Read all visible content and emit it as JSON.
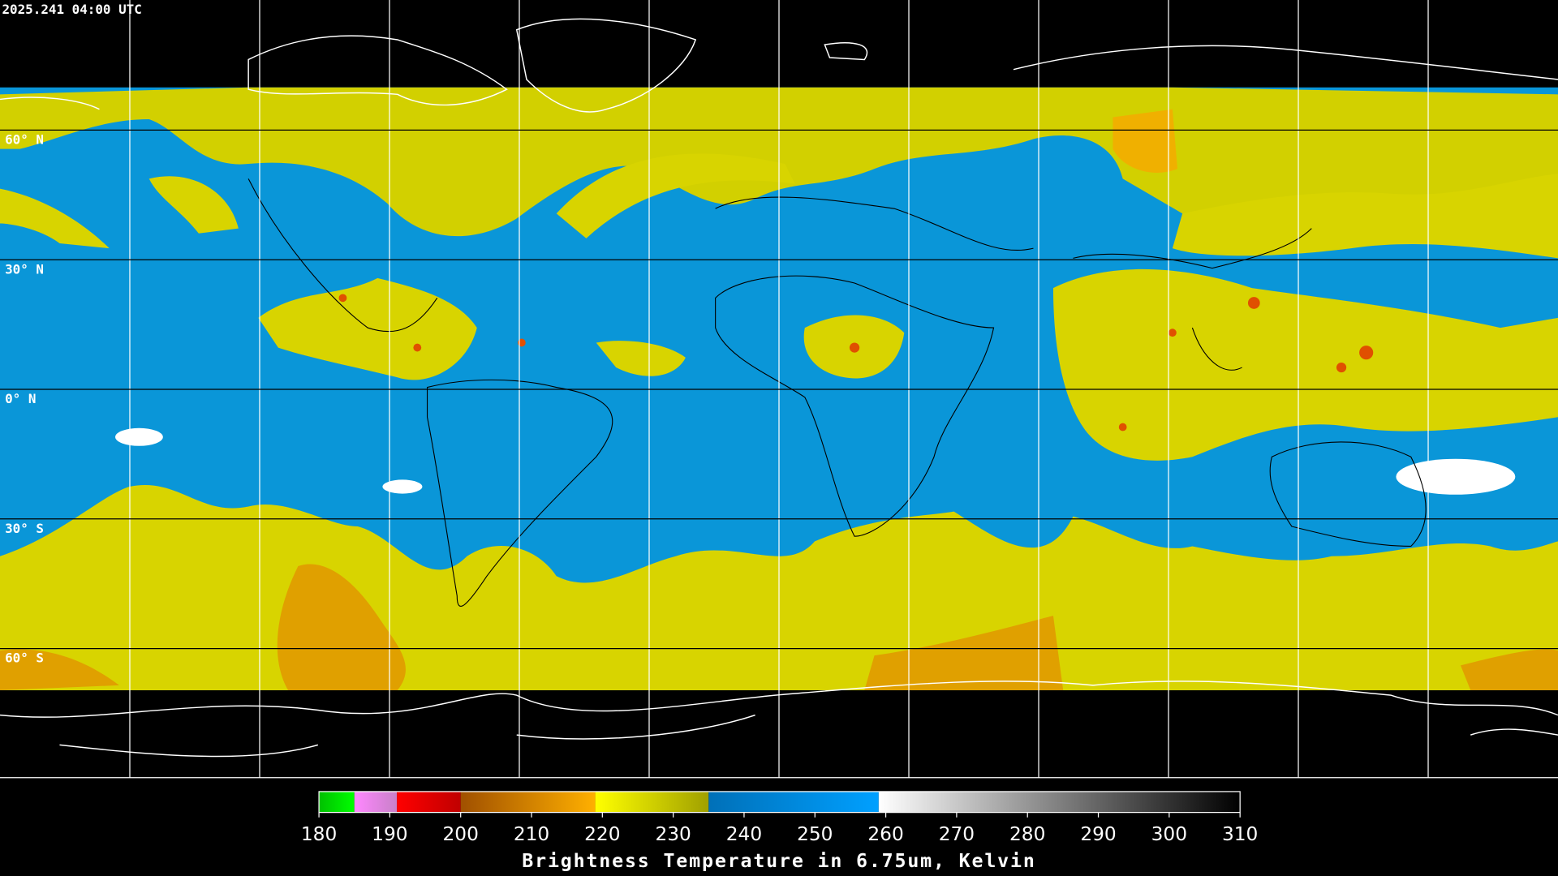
{
  "header": {
    "title": "2025.241 04:00 UTC"
  },
  "map": {
    "lon_lines": [
      -150,
      -120,
      -90,
      -60,
      -30,
      0,
      30,
      60,
      90,
      120,
      150
    ],
    "lat_lines": [
      {
        "value": 60,
        "label": "60° N"
      },
      {
        "value": 30,
        "label": "30° N"
      },
      {
        "value": 0,
        "label": "0° N"
      },
      {
        "value": -30,
        "label": "30° S"
      },
      {
        "value": -60,
        "label": "60° S"
      }
    ]
  },
  "colorbar": {
    "range": [
      180,
      310
    ],
    "ticks": [
      180,
      190,
      200,
      210,
      220,
      230,
      240,
      250,
      260,
      270,
      280,
      290,
      300,
      310
    ],
    "label": "Brightness Temperature in 6.75um, Kelvin",
    "segments": [
      {
        "from": 180,
        "to": 185,
        "colors": [
          "#00c000",
          "#00ff00"
        ]
      },
      {
        "from": 185,
        "to": 191,
        "colors": [
          "#ff88ff",
          "#c880c8"
        ]
      },
      {
        "from": 191,
        "to": 200,
        "colors": [
          "#ff0000",
          "#c00000"
        ]
      },
      {
        "from": 200,
        "to": 219,
        "colors": [
          "#a05000",
          "#ffb000"
        ]
      },
      {
        "from": 219,
        "to": 235,
        "colors": [
          "#ffff00",
          "#a0a000"
        ]
      },
      {
        "from": 235,
        "to": 259,
        "colors": [
          "#0070b8",
          "#00a0ff"
        ]
      },
      {
        "from": 259,
        "to": 310,
        "colors": [
          "#ffffff",
          "#000000"
        ]
      }
    ]
  }
}
